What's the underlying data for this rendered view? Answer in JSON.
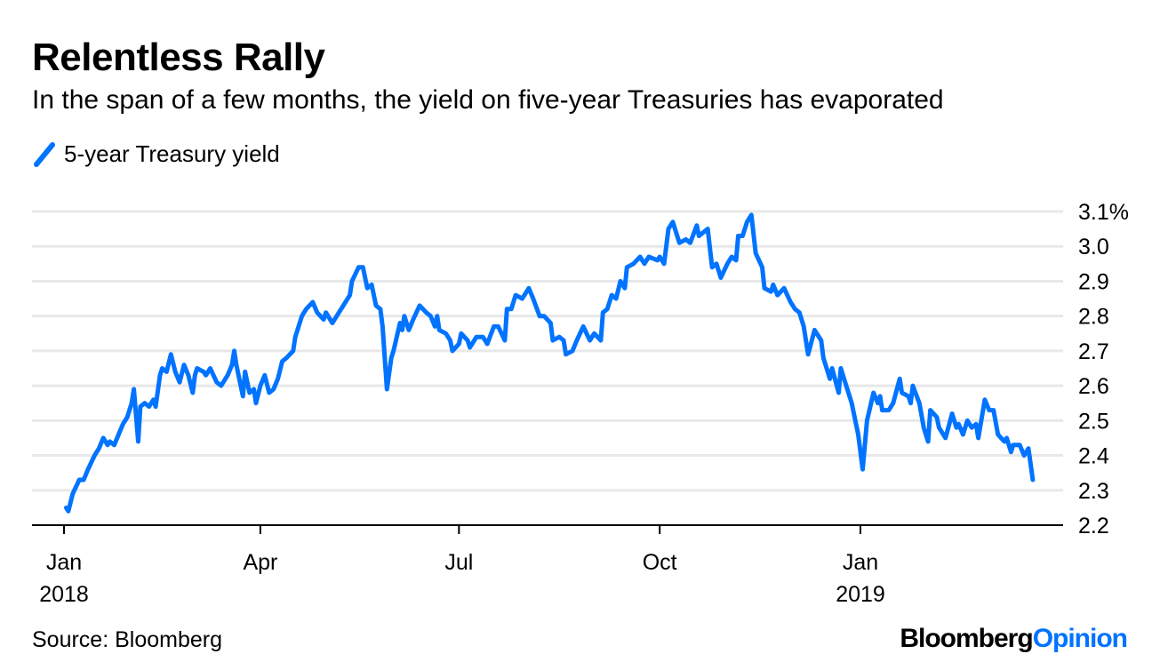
{
  "title": "Relentless Rally",
  "subtitle": "In the span of a few months, the yield on five-year Treasuries has evaporated",
  "source": "Source: Bloomberg",
  "logo": {
    "brand": "Bloomberg",
    "product": "Opinion"
  },
  "colors": {
    "series": "#0073FF",
    "grid": "#E8E8E8",
    "axis": "#000000"
  },
  "chart_data": {
    "type": "line",
    "title": "Relentless Rally",
    "subtitle": "In the span of a few months, the yield on five-year Treasuries has evaporated",
    "legend_placement": "top-left",
    "grid": true,
    "y_axis_side": "right",
    "ylim": [
      2.2,
      3.1
    ],
    "y_ticks": [
      "2.2",
      "2.3",
      "2.4",
      "2.5",
      "2.6",
      "2.7",
      "2.8",
      "2.9",
      "3.0",
      "3.1%"
    ],
    "x_ticks": [
      {
        "date": "2018-01-01",
        "line1": "Jan",
        "line2": "2018"
      },
      {
        "date": "2018-04-01",
        "line1": "Apr",
        "line2": ""
      },
      {
        "date": "2018-07-01",
        "line1": "Jul",
        "line2": ""
      },
      {
        "date": "2018-10-01",
        "line1": "Oct",
        "line2": ""
      },
      {
        "date": "2019-01-01",
        "line1": "Jan",
        "line2": "2019"
      }
    ],
    "series": [
      {
        "name": "5-year Treasury yield",
        "color": "#0073FF",
        "points": [
          [
            "2018-01-02",
            2.25
          ],
          [
            "2018-01-03",
            2.24
          ],
          [
            "2018-01-05",
            2.29
          ],
          [
            "2018-01-08",
            2.33
          ],
          [
            "2018-01-10",
            2.33
          ],
          [
            "2018-01-12",
            2.36
          ],
          [
            "2018-01-15",
            2.4
          ],
          [
            "2018-01-17",
            2.42
          ],
          [
            "2018-01-19",
            2.45
          ],
          [
            "2018-01-21",
            2.43
          ],
          [
            "2018-01-22",
            2.44
          ],
          [
            "2018-01-24",
            2.43
          ],
          [
            "2018-01-26",
            2.46
          ],
          [
            "2018-01-28",
            2.49
          ],
          [
            "2018-01-30",
            2.51
          ],
          [
            "2018-02-01",
            2.55
          ],
          [
            "2018-02-02",
            2.59
          ],
          [
            "2018-02-04",
            2.44
          ],
          [
            "2018-02-05",
            2.54
          ],
          [
            "2018-02-07",
            2.55
          ],
          [
            "2018-02-09",
            2.54
          ],
          [
            "2018-02-11",
            2.56
          ],
          [
            "2018-02-12",
            2.54
          ],
          [
            "2018-02-14",
            2.63
          ],
          [
            "2018-02-15",
            2.65
          ],
          [
            "2018-02-17",
            2.64
          ],
          [
            "2018-02-19",
            2.69
          ],
          [
            "2018-02-21",
            2.64
          ],
          [
            "2018-02-23",
            2.61
          ],
          [
            "2018-02-25",
            2.66
          ],
          [
            "2018-02-27",
            2.63
          ],
          [
            "2018-03-01",
            2.58
          ],
          [
            "2018-03-02",
            2.63
          ],
          [
            "2018-03-03",
            2.65
          ],
          [
            "2018-03-06",
            2.64
          ],
          [
            "2018-03-07",
            2.63
          ],
          [
            "2018-03-09",
            2.65
          ],
          [
            "2018-03-12",
            2.61
          ],
          [
            "2018-03-14",
            2.6
          ],
          [
            "2018-03-17",
            2.63
          ],
          [
            "2018-03-19",
            2.66
          ],
          [
            "2018-03-20",
            2.7
          ],
          [
            "2018-03-21",
            2.66
          ],
          [
            "2018-03-24",
            2.57
          ],
          [
            "2018-03-25",
            2.64
          ],
          [
            "2018-03-27",
            2.58
          ],
          [
            "2018-03-29",
            2.59
          ],
          [
            "2018-03-30",
            2.55
          ],
          [
            "2018-04-01",
            2.6
          ],
          [
            "2018-04-03",
            2.63
          ],
          [
            "2018-04-05",
            2.58
          ],
          [
            "2018-04-07",
            2.59
          ],
          [
            "2018-04-09",
            2.62
          ],
          [
            "2018-04-11",
            2.67
          ],
          [
            "2018-04-13",
            2.68
          ],
          [
            "2018-04-16",
            2.7
          ],
          [
            "2018-04-17",
            2.74
          ],
          [
            "2018-04-20",
            2.8
          ],
          [
            "2018-04-22",
            2.82
          ],
          [
            "2018-04-25",
            2.84
          ],
          [
            "2018-04-27",
            2.81
          ],
          [
            "2018-04-30",
            2.79
          ],
          [
            "2018-05-01",
            2.81
          ],
          [
            "2018-05-04",
            2.78
          ],
          [
            "2018-05-06",
            2.8
          ],
          [
            "2018-05-09",
            2.83
          ],
          [
            "2018-05-12",
            2.86
          ],
          [
            "2018-05-13",
            2.9
          ],
          [
            "2018-05-16",
            2.94
          ],
          [
            "2018-05-18",
            2.94
          ],
          [
            "2018-05-20",
            2.88
          ],
          [
            "2018-05-22",
            2.89
          ],
          [
            "2018-05-24",
            2.83
          ],
          [
            "2018-05-26",
            2.82
          ],
          [
            "2018-05-27",
            2.77
          ],
          [
            "2018-05-29",
            2.59
          ],
          [
            "2018-05-31",
            2.68
          ],
          [
            "2018-06-01",
            2.7
          ],
          [
            "2018-06-04",
            2.78
          ],
          [
            "2018-06-05",
            2.76
          ],
          [
            "2018-06-06",
            2.8
          ],
          [
            "2018-06-08",
            2.76
          ],
          [
            "2018-06-10",
            2.79
          ],
          [
            "2018-06-13",
            2.83
          ],
          [
            "2018-06-16",
            2.81
          ],
          [
            "2018-06-18",
            2.8
          ],
          [
            "2018-06-20",
            2.77
          ],
          [
            "2018-06-21",
            2.8
          ],
          [
            "2018-06-22",
            2.76
          ],
          [
            "2018-06-25",
            2.75
          ],
          [
            "2018-06-27",
            2.73
          ],
          [
            "2018-06-28",
            2.7
          ],
          [
            "2018-07-01",
            2.72
          ],
          [
            "2018-07-02",
            2.75
          ],
          [
            "2018-07-05",
            2.73
          ],
          [
            "2018-07-06",
            2.71
          ],
          [
            "2018-07-09",
            2.74
          ],
          [
            "2018-07-12",
            2.74
          ],
          [
            "2018-07-14",
            2.72
          ],
          [
            "2018-07-17",
            2.77
          ],
          [
            "2018-07-19",
            2.77
          ],
          [
            "2018-07-22",
            2.73
          ],
          [
            "2018-07-23",
            2.82
          ],
          [
            "2018-07-25",
            2.82
          ],
          [
            "2018-07-27",
            2.86
          ],
          [
            "2018-07-30",
            2.85
          ],
          [
            "2018-08-02",
            2.88
          ],
          [
            "2018-08-04",
            2.85
          ],
          [
            "2018-08-07",
            2.8
          ],
          [
            "2018-08-09",
            2.8
          ],
          [
            "2018-08-12",
            2.78
          ],
          [
            "2018-08-13",
            2.73
          ],
          [
            "2018-08-16",
            2.74
          ],
          [
            "2018-08-18",
            2.73
          ],
          [
            "2018-08-19",
            2.69
          ],
          [
            "2018-08-22",
            2.7
          ],
          [
            "2018-08-24",
            2.73
          ],
          [
            "2018-08-27",
            2.77
          ],
          [
            "2018-08-30",
            2.73
          ],
          [
            "2018-09-01",
            2.75
          ],
          [
            "2018-09-04",
            2.73
          ],
          [
            "2018-09-05",
            2.81
          ],
          [
            "2018-09-07",
            2.82
          ],
          [
            "2018-09-09",
            2.86
          ],
          [
            "2018-09-11",
            2.85
          ],
          [
            "2018-09-13",
            2.9
          ],
          [
            "2018-09-15",
            2.88
          ],
          [
            "2018-09-16",
            2.94
          ],
          [
            "2018-09-19",
            2.95
          ],
          [
            "2018-09-22",
            2.97
          ],
          [
            "2018-09-24",
            2.95
          ],
          [
            "2018-09-26",
            2.97
          ],
          [
            "2018-09-30",
            2.96
          ],
          [
            "2018-10-01",
            2.97
          ],
          [
            "2018-10-03",
            2.95
          ],
          [
            "2018-10-05",
            3.05
          ],
          [
            "2018-10-07",
            3.07
          ],
          [
            "2018-10-10",
            3.01
          ],
          [
            "2018-10-13",
            3.02
          ],
          [
            "2018-10-15",
            3.01
          ],
          [
            "2018-10-18",
            3.06
          ],
          [
            "2018-10-19",
            3.03
          ],
          [
            "2018-10-23",
            3.05
          ],
          [
            "2018-10-25",
            2.94
          ],
          [
            "2018-10-27",
            2.95
          ],
          [
            "2018-10-29",
            2.91
          ],
          [
            "2018-11-01",
            2.95
          ],
          [
            "2018-11-03",
            2.97
          ],
          [
            "2018-11-05",
            2.96
          ],
          [
            "2018-11-06",
            3.03
          ],
          [
            "2018-11-08",
            3.03
          ],
          [
            "2018-11-10",
            3.07
          ],
          [
            "2018-11-12",
            3.09
          ],
          [
            "2018-11-14",
            2.98
          ],
          [
            "2018-11-17",
            2.94
          ],
          [
            "2018-11-18",
            2.88
          ],
          [
            "2018-11-21",
            2.87
          ],
          [
            "2018-11-22",
            2.89
          ],
          [
            "2018-11-24",
            2.86
          ],
          [
            "2018-11-27",
            2.88
          ],
          [
            "2018-11-30",
            2.84
          ],
          [
            "2018-12-02",
            2.82
          ],
          [
            "2018-12-04",
            2.81
          ],
          [
            "2018-12-06",
            2.77
          ],
          [
            "2018-12-08",
            2.69
          ],
          [
            "2018-12-11",
            2.76
          ],
          [
            "2018-12-14",
            2.73
          ],
          [
            "2018-12-15",
            2.68
          ],
          [
            "2018-12-18",
            2.62
          ],
          [
            "2018-12-19",
            2.65
          ],
          [
            "2018-12-22",
            2.58
          ],
          [
            "2018-12-23",
            2.65
          ],
          [
            "2018-12-25",
            2.61
          ],
          [
            "2018-12-28",
            2.55
          ],
          [
            "2018-12-29",
            2.52
          ],
          [
            "2018-12-31",
            2.46
          ],
          [
            "2019-01-02",
            2.36
          ],
          [
            "2019-01-04",
            2.5
          ],
          [
            "2019-01-07",
            2.58
          ],
          [
            "2019-01-09",
            2.55
          ],
          [
            "2019-01-10",
            2.57
          ],
          [
            "2019-01-11",
            2.53
          ],
          [
            "2019-01-14",
            2.53
          ],
          [
            "2019-01-16",
            2.55
          ],
          [
            "2019-01-19",
            2.62
          ],
          [
            "2019-01-20",
            2.58
          ],
          [
            "2019-01-23",
            2.57
          ],
          [
            "2019-01-24",
            2.55
          ],
          [
            "2019-01-25",
            2.6
          ],
          [
            "2019-01-28",
            2.55
          ],
          [
            "2019-01-30",
            2.48
          ],
          [
            "2019-02-01",
            2.44
          ],
          [
            "2019-02-02",
            2.53
          ],
          [
            "2019-02-05",
            2.51
          ],
          [
            "2019-02-06",
            2.48
          ],
          [
            "2019-02-09",
            2.45
          ],
          [
            "2019-02-12",
            2.52
          ],
          [
            "2019-02-14",
            2.48
          ],
          [
            "2019-02-15",
            2.49
          ],
          [
            "2019-02-17",
            2.46
          ],
          [
            "2019-02-19",
            2.5
          ],
          [
            "2019-02-21",
            2.48
          ],
          [
            "2019-02-23",
            2.49
          ],
          [
            "2019-02-24",
            2.45
          ],
          [
            "2019-02-27",
            2.56
          ],
          [
            "2019-03-01",
            2.53
          ],
          [
            "2019-03-03",
            2.53
          ],
          [
            "2019-03-05",
            2.46
          ],
          [
            "2019-03-08",
            2.44
          ],
          [
            "2019-03-09",
            2.45
          ],
          [
            "2019-03-11",
            2.41
          ],
          [
            "2019-03-12",
            2.43
          ],
          [
            "2019-03-15",
            2.43
          ],
          [
            "2019-03-17",
            2.4
          ],
          [
            "2019-03-19",
            2.42
          ],
          [
            "2019-03-21",
            2.33
          ]
        ]
      }
    ]
  }
}
